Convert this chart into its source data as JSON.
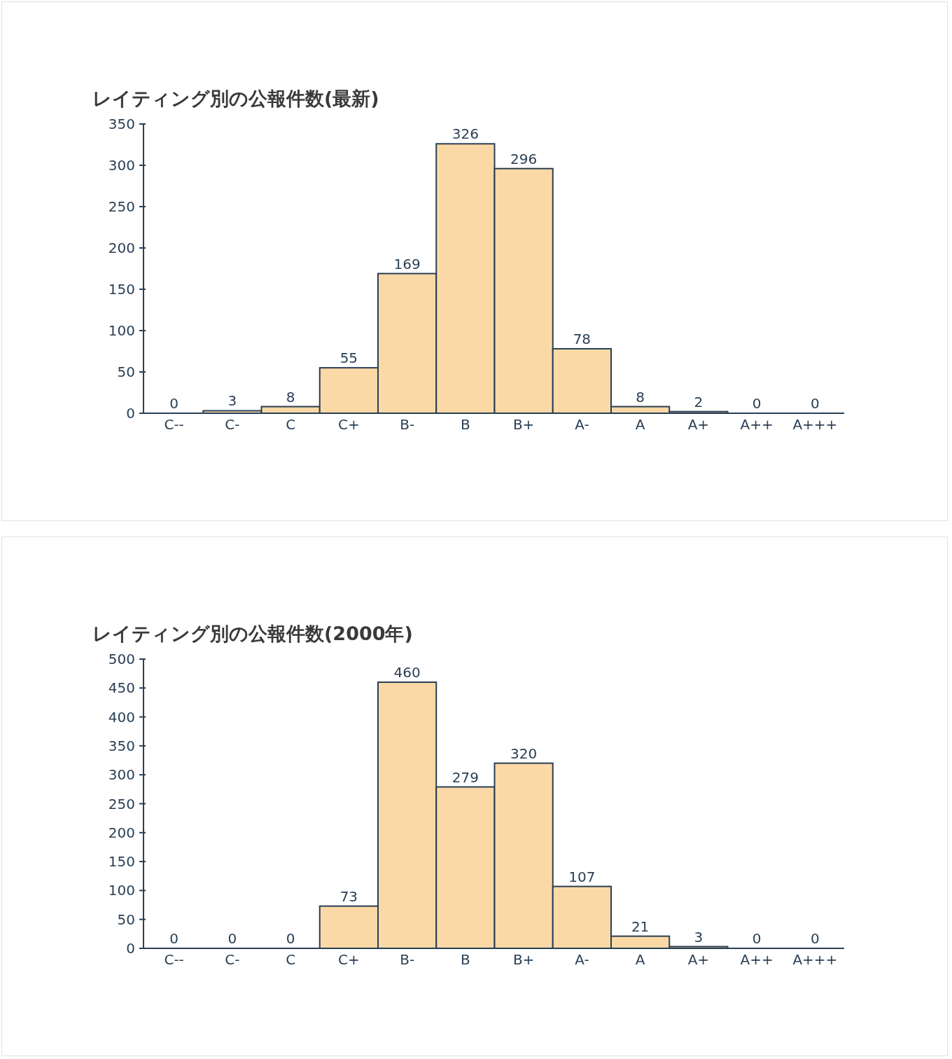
{
  "chart_data": [
    {
      "type": "bar",
      "title": "レイティング別の公報件数(最新)",
      "categories": [
        "C--",
        "C-",
        "C",
        "C+",
        "B-",
        "B",
        "B+",
        "A-",
        "A",
        "A+",
        "A++",
        "A+++"
      ],
      "values": [
        0,
        3,
        8,
        55,
        169,
        326,
        296,
        78,
        8,
        2,
        0,
        0
      ],
      "color": "#fbd9a6",
      "ylim": [
        0,
        350
      ],
      "yticks": [
        0,
        50,
        100,
        150,
        200,
        250,
        300,
        350
      ],
      "data_labels": true
    },
    {
      "type": "bar",
      "title": "レイティング別の公報件数(2000年)",
      "categories": [
        "C--",
        "C-",
        "C",
        "C+",
        "B-",
        "B",
        "B+",
        "A-",
        "A",
        "A+",
        "A++",
        "A+++"
      ],
      "values": [
        0,
        0,
        0,
        73,
        460,
        279,
        320,
        107,
        21,
        3,
        0,
        0
      ],
      "color": "#fbd9a6",
      "ylim": [
        0,
        500
      ],
      "yticks": [
        0,
        50,
        100,
        150,
        200,
        250,
        300,
        350,
        400,
        450,
        500
      ],
      "data_labels": true
    }
  ]
}
